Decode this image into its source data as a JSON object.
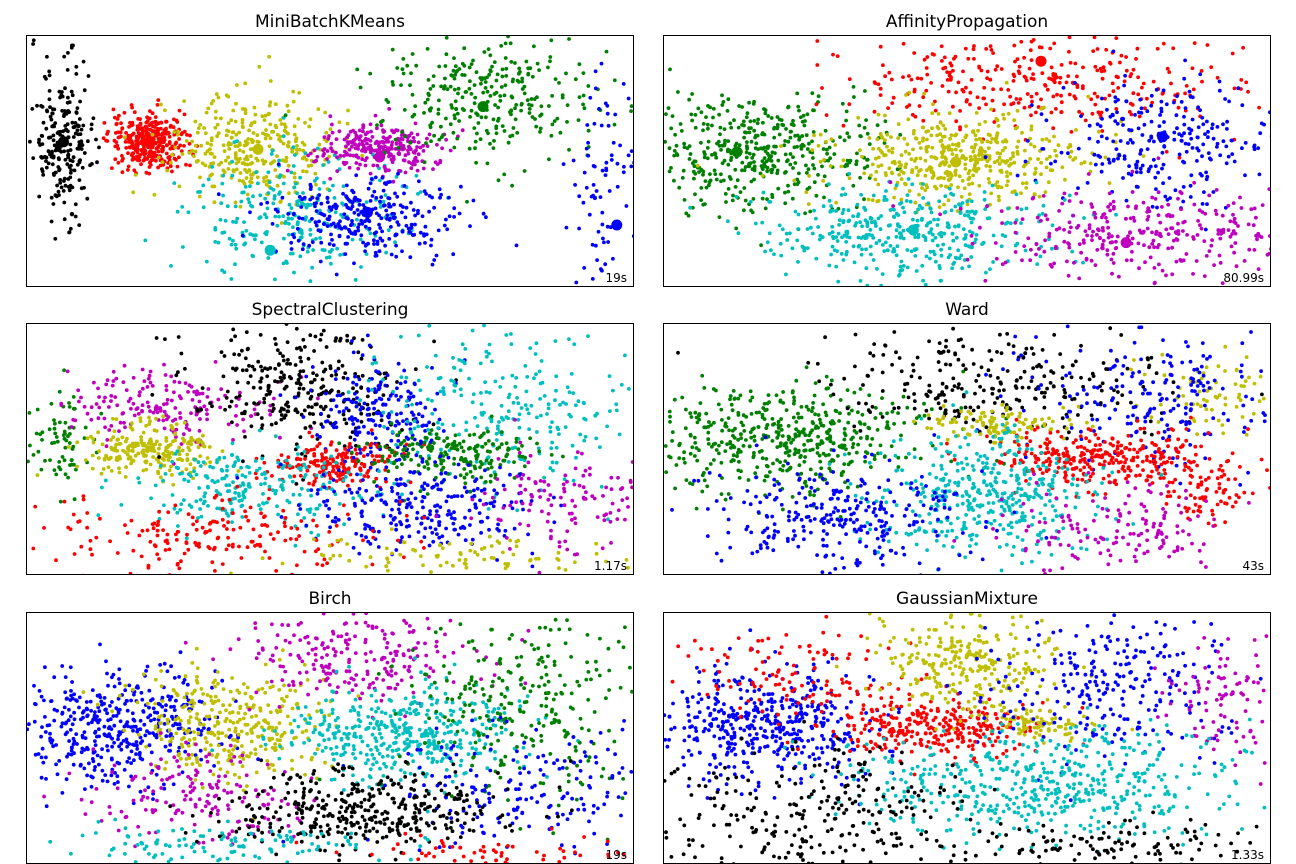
{
  "chart_data": [
    {
      "type": "scatter",
      "title": "MiniBatchKMeans",
      "timing": "19s",
      "clusters": [
        {
          "color": "#000000",
          "center": [
            0.06,
            0.42
          ],
          "spread": [
            0.08,
            0.45
          ],
          "count": 230,
          "centroid": [
            0.06,
            0.42
          ]
        },
        {
          "color": "#ff0000",
          "center": [
            0.2,
            0.42
          ],
          "spread": [
            0.1,
            0.18
          ],
          "count": 330,
          "centroid": [
            0.2,
            0.42
          ]
        },
        {
          "color": "#bfbf00",
          "center": [
            0.38,
            0.45
          ],
          "spread": [
            0.22,
            0.35
          ],
          "count": 320,
          "centroid": [
            0.38,
            0.45
          ]
        },
        {
          "color": "#00bfbf",
          "center": [
            0.45,
            0.7
          ],
          "spread": [
            0.3,
            0.4
          ],
          "count": 270,
          "centroid": [
            0.4,
            0.85
          ]
        },
        {
          "color": "#bf00bf",
          "center": [
            0.58,
            0.45
          ],
          "spread": [
            0.18,
            0.16
          ],
          "count": 260,
          "centroid": [
            0.58,
            0.48
          ]
        },
        {
          "color": "#0000ff",
          "center": [
            0.56,
            0.72
          ],
          "spread": [
            0.25,
            0.25
          ],
          "count": 290,
          "centroid": [
            0.56,
            0.7
          ]
        },
        {
          "color": "#008000",
          "center": [
            0.75,
            0.25
          ],
          "spread": [
            0.28,
            0.4
          ],
          "count": 300,
          "centroid": [
            0.75,
            0.28
          ]
        },
        {
          "color": "#0000ff",
          "center": [
            0.95,
            0.6
          ],
          "spread": [
            0.1,
            0.6
          ],
          "count": 80,
          "centroid": [
            0.97,
            0.75
          ]
        }
      ]
    },
    {
      "type": "scatter",
      "title": "AffinityPropagation",
      "timing": "80.99s",
      "clusters": [
        {
          "color": "#008000",
          "center": [
            0.16,
            0.45
          ],
          "spread": [
            0.3,
            0.38
          ],
          "count": 430,
          "centroid": [
            0.12,
            0.46
          ]
        },
        {
          "color": "#ff0000",
          "center": [
            0.62,
            0.18
          ],
          "spread": [
            0.55,
            0.3
          ],
          "count": 330,
          "centroid": [
            0.62,
            0.1
          ]
        },
        {
          "color": "#bfbf00",
          "center": [
            0.48,
            0.48
          ],
          "spread": [
            0.34,
            0.28
          ],
          "count": 450,
          "centroid": [
            0.48,
            0.5
          ]
        },
        {
          "color": "#0000ff",
          "center": [
            0.82,
            0.42
          ],
          "spread": [
            0.3,
            0.45
          ],
          "count": 260,
          "centroid": [
            0.82,
            0.4
          ]
        },
        {
          "color": "#00bfbf",
          "center": [
            0.4,
            0.78
          ],
          "spread": [
            0.4,
            0.3
          ],
          "count": 390,
          "centroid": [
            0.41,
            0.77
          ]
        },
        {
          "color": "#bf00bf",
          "center": [
            0.78,
            0.78
          ],
          "spread": [
            0.45,
            0.3
          ],
          "count": 330,
          "centroid": [
            0.76,
            0.82
          ]
        }
      ]
    },
    {
      "type": "scatter",
      "title": "SpectralClustering",
      "timing": "1.17s",
      "clusters": [
        {
          "color": "#008000",
          "center": [
            0.05,
            0.45
          ],
          "spread": [
            0.08,
            0.3
          ],
          "count": 70,
          "centroid": null
        },
        {
          "color": "#bf00bf",
          "center": [
            0.22,
            0.32
          ],
          "spread": [
            0.28,
            0.25
          ],
          "count": 180,
          "centroid": null
        },
        {
          "color": "#bfbf00",
          "center": [
            0.2,
            0.5
          ],
          "spread": [
            0.18,
            0.18
          ],
          "count": 230,
          "centroid": null
        },
        {
          "color": "#000000",
          "center": [
            0.45,
            0.25
          ],
          "spread": [
            0.3,
            0.45
          ],
          "count": 300,
          "centroid": null
        },
        {
          "color": "#0000ff",
          "center": [
            0.58,
            0.35
          ],
          "spread": [
            0.2,
            0.35
          ],
          "count": 200,
          "centroid": null
        },
        {
          "color": "#00bfbf",
          "center": [
            0.78,
            0.35
          ],
          "spread": [
            0.35,
            0.55
          ],
          "count": 260,
          "centroid": null
        },
        {
          "color": "#ff0000",
          "center": [
            0.5,
            0.55
          ],
          "spread": [
            0.18,
            0.15
          ],
          "count": 180,
          "centroid": null
        },
        {
          "color": "#008000",
          "center": [
            0.7,
            0.52
          ],
          "spread": [
            0.22,
            0.18
          ],
          "count": 200,
          "centroid": null
        },
        {
          "color": "#00bfbf",
          "center": [
            0.36,
            0.65
          ],
          "spread": [
            0.28,
            0.25
          ],
          "count": 230,
          "centroid": null
        },
        {
          "color": "#0000ff",
          "center": [
            0.65,
            0.72
          ],
          "spread": [
            0.3,
            0.3
          ],
          "count": 260,
          "centroid": null
        },
        {
          "color": "#bf00bf",
          "center": [
            0.88,
            0.7
          ],
          "spread": [
            0.22,
            0.4
          ],
          "count": 120,
          "centroid": null
        },
        {
          "color": "#ff0000",
          "center": [
            0.3,
            0.85
          ],
          "spread": [
            0.45,
            0.25
          ],
          "count": 200,
          "centroid": null
        },
        {
          "color": "#bfbf00",
          "center": [
            0.7,
            0.92
          ],
          "spread": [
            0.45,
            0.12
          ],
          "count": 90,
          "centroid": null
        }
      ]
    },
    {
      "type": "scatter",
      "title": "Ward",
      "timing": "43s",
      "clusters": [
        {
          "color": "#008000",
          "center": [
            0.2,
            0.45
          ],
          "spread": [
            0.38,
            0.35
          ],
          "count": 500,
          "centroid": null
        },
        {
          "color": "#000000",
          "center": [
            0.55,
            0.22
          ],
          "spread": [
            0.45,
            0.35
          ],
          "count": 260,
          "centroid": null
        },
        {
          "color": "#bfbf00",
          "center": [
            0.55,
            0.4
          ],
          "spread": [
            0.22,
            0.12
          ],
          "count": 110,
          "centroid": null
        },
        {
          "color": "#bfbf00",
          "center": [
            0.9,
            0.28
          ],
          "spread": [
            0.18,
            0.25
          ],
          "count": 70,
          "centroid": null
        },
        {
          "color": "#0000ff",
          "center": [
            0.8,
            0.3
          ],
          "spread": [
            0.35,
            0.45
          ],
          "count": 220,
          "centroid": null
        },
        {
          "color": "#ff0000",
          "center": [
            0.72,
            0.53
          ],
          "spread": [
            0.3,
            0.18
          ],
          "count": 300,
          "centroid": null
        },
        {
          "color": "#ff0000",
          "center": [
            0.9,
            0.65
          ],
          "spread": [
            0.15,
            0.25
          ],
          "count": 80,
          "centroid": null
        },
        {
          "color": "#00bfbf",
          "center": [
            0.52,
            0.68
          ],
          "spread": [
            0.3,
            0.4
          ],
          "count": 420,
          "centroid": null
        },
        {
          "color": "#0000ff",
          "center": [
            0.28,
            0.76
          ],
          "spread": [
            0.35,
            0.35
          ],
          "count": 280,
          "centroid": null
        },
        {
          "color": "#bf00bf",
          "center": [
            0.75,
            0.82
          ],
          "spread": [
            0.3,
            0.3
          ],
          "count": 150,
          "centroid": null
        }
      ]
    },
    {
      "type": "scatter",
      "title": "Birch",
      "timing": "19s",
      "clusters": [
        {
          "color": "#0000ff",
          "center": [
            0.15,
            0.45
          ],
          "spread": [
            0.28,
            0.4
          ],
          "count": 430,
          "centroid": null
        },
        {
          "color": "#bfbf00",
          "center": [
            0.33,
            0.45
          ],
          "spread": [
            0.28,
            0.35
          ],
          "count": 330,
          "centroid": null
        },
        {
          "color": "#bf00bf",
          "center": [
            0.55,
            0.18
          ],
          "spread": [
            0.3,
            0.3
          ],
          "count": 230,
          "centroid": null
        },
        {
          "color": "#bf00bf",
          "center": [
            0.28,
            0.72
          ],
          "spread": [
            0.3,
            0.3
          ],
          "count": 160,
          "centroid": null
        },
        {
          "color": "#00bfbf",
          "center": [
            0.62,
            0.48
          ],
          "spread": [
            0.3,
            0.3
          ],
          "count": 430,
          "centroid": null
        },
        {
          "color": "#008000",
          "center": [
            0.82,
            0.35
          ],
          "spread": [
            0.3,
            0.6
          ],
          "count": 280,
          "centroid": null
        },
        {
          "color": "#0000ff",
          "center": [
            0.8,
            0.7
          ],
          "spread": [
            0.35,
            0.4
          ],
          "count": 180,
          "centroid": null
        },
        {
          "color": "#000000",
          "center": [
            0.55,
            0.78
          ],
          "spread": [
            0.38,
            0.25
          ],
          "count": 380,
          "centroid": null
        },
        {
          "color": "#00bfbf",
          "center": [
            0.35,
            0.92
          ],
          "spread": [
            0.45,
            0.12
          ],
          "count": 120,
          "centroid": null
        },
        {
          "color": "#ff0000",
          "center": [
            0.75,
            0.95
          ],
          "spread": [
            0.35,
            0.1
          ],
          "count": 60,
          "centroid": null
        }
      ]
    },
    {
      "type": "scatter",
      "title": "GaussianMixture",
      "timing": "1.33s",
      "clusters": [
        {
          "color": "#0000ff",
          "center": [
            0.16,
            0.45
          ],
          "spread": [
            0.3,
            0.35
          ],
          "count": 460,
          "centroid": null
        },
        {
          "color": "#ff0000",
          "center": [
            0.22,
            0.25
          ],
          "spread": [
            0.3,
            0.3
          ],
          "count": 120,
          "centroid": null
        },
        {
          "color": "#ff0000",
          "center": [
            0.45,
            0.46
          ],
          "spread": [
            0.25,
            0.18
          ],
          "count": 300,
          "centroid": null
        },
        {
          "color": "#bfbf00",
          "center": [
            0.5,
            0.2
          ],
          "spread": [
            0.25,
            0.35
          ],
          "count": 270,
          "centroid": null
        },
        {
          "color": "#bfbf00",
          "center": [
            0.62,
            0.44
          ],
          "spread": [
            0.14,
            0.1
          ],
          "count": 80,
          "centroid": null
        },
        {
          "color": "#0000ff",
          "center": [
            0.75,
            0.28
          ],
          "spread": [
            0.35,
            0.5
          ],
          "count": 260,
          "centroid": null
        },
        {
          "color": "#bf00bf",
          "center": [
            0.92,
            0.35
          ],
          "spread": [
            0.15,
            0.4
          ],
          "count": 90,
          "centroid": null
        },
        {
          "color": "#00bfbf",
          "center": [
            0.62,
            0.68
          ],
          "spread": [
            0.5,
            0.35
          ],
          "count": 520,
          "centroid": null
        },
        {
          "color": "#000000",
          "center": [
            0.25,
            0.8
          ],
          "spread": [
            0.4,
            0.4
          ],
          "count": 260,
          "centroid": null
        },
        {
          "color": "#000000",
          "center": [
            0.72,
            0.92
          ],
          "spread": [
            0.5,
            0.15
          ],
          "count": 130,
          "centroid": null
        }
      ]
    }
  ]
}
